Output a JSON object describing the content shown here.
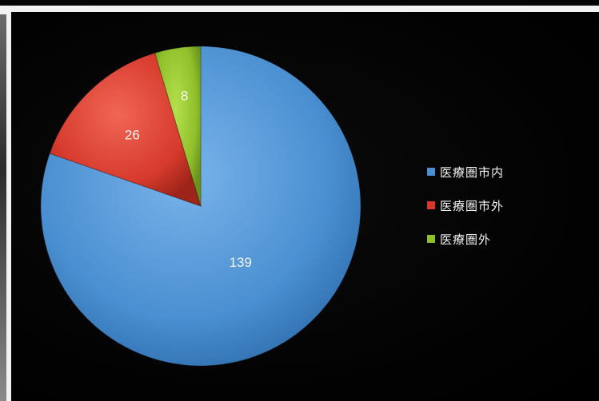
{
  "chart_data": {
    "type": "pie",
    "categories": [
      "医療圏市内",
      "医療圏市外",
      "医療圏外"
    ],
    "values": [
      139,
      26,
      8
    ],
    "data_labels": [
      "139",
      "26",
      "8"
    ],
    "colors": [
      "#4a8fd1",
      "#d63a2c",
      "#8fbf2a"
    ],
    "start_angle_deg": 0,
    "direction": "clockwise",
    "legend_placement": "right",
    "title": ""
  },
  "legend": {
    "items": [
      {
        "label": "医療圏市内",
        "color": "#4a8fd1"
      },
      {
        "label": "医療圏市外",
        "color": "#d63a2c"
      },
      {
        "label": "医療圏外",
        "color": "#8fbf2a"
      }
    ]
  }
}
